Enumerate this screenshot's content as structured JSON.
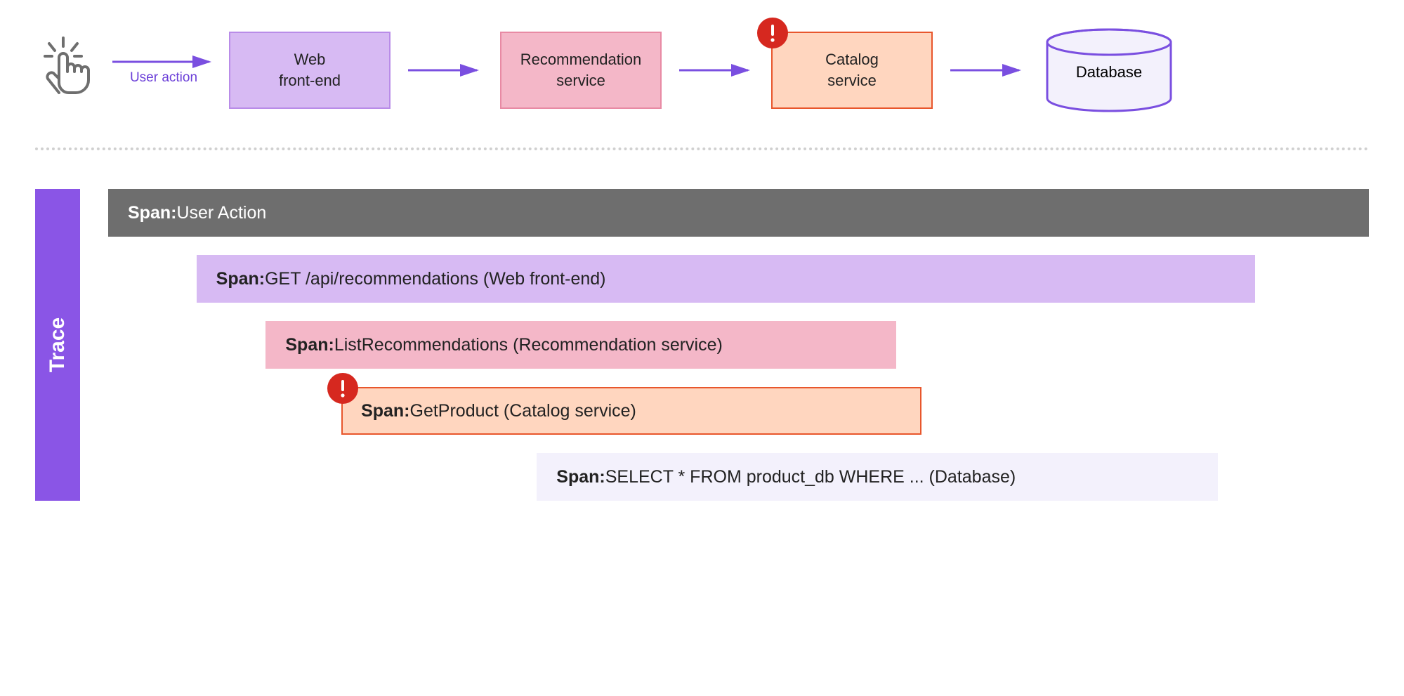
{
  "colors": {
    "arrow": "#7a4fe0",
    "arrow_caption": "#6b3fd8",
    "icon_stroke": "#6e6e6e",
    "divider": "#d0d0d0",
    "error_badge_bg": "#d6281f",
    "error_badge_fg": "#ffffff",
    "trace_rail_bg": "#8a55e6",
    "trace_rail_text": "#ffffff"
  },
  "flow": {
    "user_action_label": "User action",
    "nodes": [
      {
        "id": "web",
        "label": "Web\nfront-end",
        "bg": "#d7baf3",
        "border": "#b98ce8",
        "text": "#222222",
        "error": false
      },
      {
        "id": "rec",
        "label": "Recommendation\nservice",
        "bg": "#f4b7c8",
        "border": "#e88aa4",
        "text": "#222222",
        "error": false
      },
      {
        "id": "catalog",
        "label": "Catalog\nservice",
        "bg": "#ffd6bf",
        "border": "#e8562c",
        "text": "#222222",
        "error": true
      }
    ],
    "database_label": "Database",
    "database": {
      "fill": "#f3f1fc",
      "stroke": "#7a4fe0"
    }
  },
  "trace": {
    "rail_label": "Trace",
    "span_label_prefix": "Span:",
    "timeline_width_pct": 100,
    "spans": [
      {
        "id": "ua",
        "text": "User Action",
        "start_pct": 0.0,
        "width_pct": 100.0,
        "bg": "#6e6e6e",
        "text_color": "#ffffff",
        "border": "transparent",
        "error": false
      },
      {
        "id": "web",
        "text": "GET /api/recommendations (Web front-end)",
        "start_pct": 7.0,
        "width_pct": 84.0,
        "bg": "#d7baf3",
        "text_color": "#222222",
        "border": "transparent",
        "error": false
      },
      {
        "id": "rec",
        "text": "ListRecommendations (Recommendation service)",
        "start_pct": 12.5,
        "width_pct": 50.0,
        "bg": "#f4b7c8",
        "text_color": "#222222",
        "border": "transparent",
        "error": false
      },
      {
        "id": "cat",
        "text": "GetProduct (Catalog service)",
        "start_pct": 18.5,
        "width_pct": 46.0,
        "bg": "#ffd6bf",
        "text_color": "#222222",
        "border": "#e8562c",
        "error": true
      },
      {
        "id": "db",
        "text": "SELECT * FROM product_db WHERE ... (Database)",
        "start_pct": 34.0,
        "width_pct": 54.0,
        "bg": "#f3f1fc",
        "text_color": "#222222",
        "border": "transparent",
        "error": false
      }
    ]
  }
}
